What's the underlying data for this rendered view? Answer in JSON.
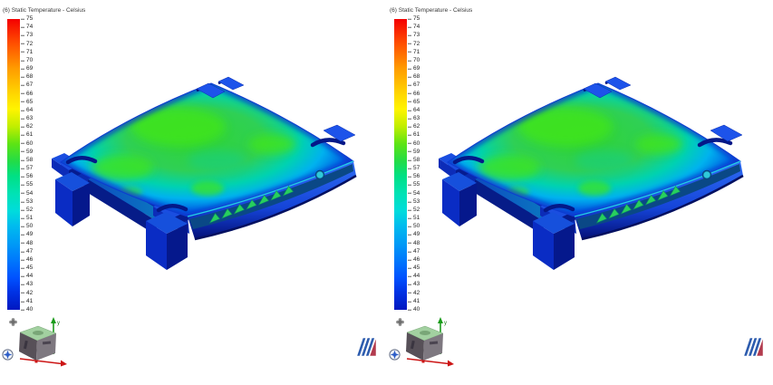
{
  "app": {
    "background": "#ffffff",
    "description": "Thermal simulation result viewports showing surface temperature contours of an electronics enclosure"
  },
  "panels": [
    {
      "name": "left-viewport"
    },
    {
      "name": "right-viewport"
    }
  ],
  "legend": {
    "title": "(6) Static Temperature - Celsius",
    "quantity": "Static Temperature",
    "unit": "Celsius",
    "max": 75,
    "min": 40,
    "step": 1,
    "ticks": [
      "75",
      "74",
      "73",
      "72",
      "71",
      "70",
      "69",
      "68",
      "67",
      "66",
      "65",
      "64",
      "63",
      "62",
      "61",
      "60",
      "59",
      "58",
      "57",
      "56",
      "55",
      "54",
      "53",
      "52",
      "51",
      "50",
      "49",
      "48",
      "47",
      "46",
      "45",
      "44",
      "43",
      "42",
      "41",
      "40"
    ],
    "colormap": [
      {
        "value": 75,
        "color": "#f40000"
      },
      {
        "value": 72,
        "color": "#ff5000"
      },
      {
        "value": 69,
        "color": "#ff9c00"
      },
      {
        "value": 66,
        "color": "#ffd800"
      },
      {
        "value": 64,
        "color": "#fff400"
      },
      {
        "value": 62,
        "color": "#c0ee00"
      },
      {
        "value": 60,
        "color": "#5ce414"
      },
      {
        "value": 58,
        "color": "#22dc48"
      },
      {
        "value": 56,
        "color": "#00e084"
      },
      {
        "value": 54,
        "color": "#00e2b4"
      },
      {
        "value": 52,
        "color": "#00dcdc"
      },
      {
        "value": 50,
        "color": "#00bcee"
      },
      {
        "value": 48,
        "color": "#009cf6"
      },
      {
        "value": 46,
        "color": "#0078fc"
      },
      {
        "value": 44,
        "color": "#0052ff"
      },
      {
        "value": 42,
        "color": "#0032e4"
      },
      {
        "value": 40,
        "color": "#0018c0"
      }
    ]
  },
  "view_cube": {
    "y_label": "y",
    "y_axis_color": "#1a9c1a",
    "x_axis_color": "#cc1616",
    "top_face_color": "#a2d0a0",
    "left_face_color": "#575058",
    "right_face_color": "#7e7880"
  },
  "device": {
    "name": "set-top-box thermal contour render",
    "hot_spot_color": "#3fe41c",
    "mid_surface_color": "#2fd055",
    "cool_edge_color": "#0a36d0",
    "led_triangle_count": 7,
    "led_triangle_color": "#28cf5e",
    "button_color": "#2fc9d8"
  },
  "brand_logo": {
    "name": "mentor-graphics-logo",
    "stripe_color": "#2d5cae",
    "triangle_color": "#b23b4e"
  }
}
